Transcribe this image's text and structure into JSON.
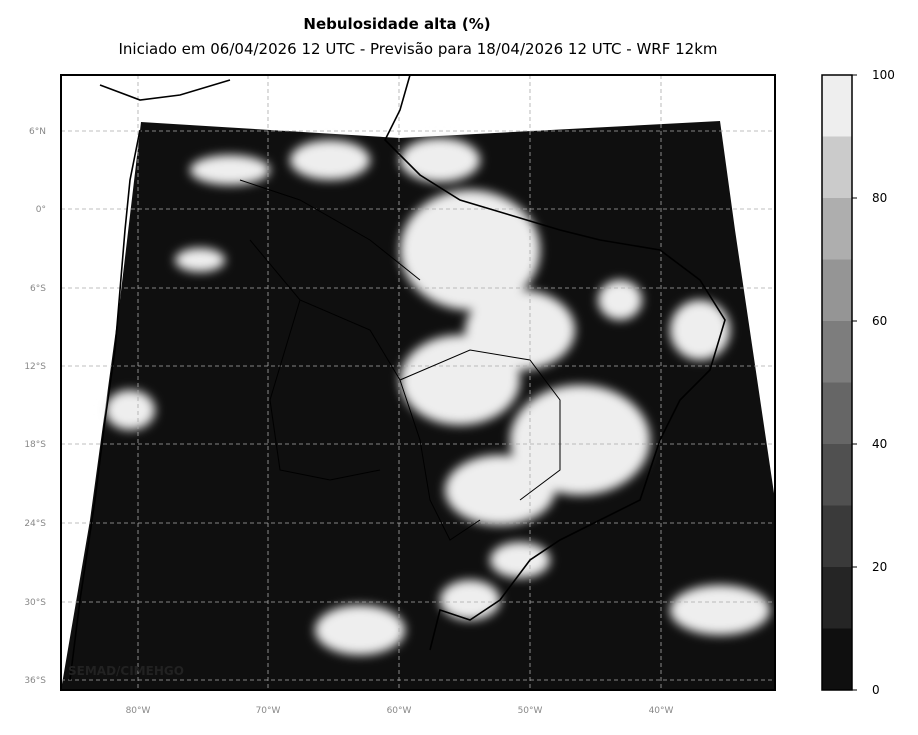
{
  "header": {
    "title": "Nebulosidade alta (%)",
    "subtitle": "Iniciado em 06/04/2026 12 UTC - Previsão para 18/04/2026 12 UTC - WRF 12km"
  },
  "map": {
    "lat_labels": [
      "6°N",
      "0°",
      "6°S",
      "12°S",
      "18°S",
      "24°S",
      "30°S",
      "36°S"
    ],
    "lon_labels": [
      "80°W",
      "70°W",
      "60°W",
      "50°W",
      "40°W"
    ],
    "watermark": "SEMAD/CIMEHGO"
  },
  "colorbar": {
    "lim": [
      0,
      100
    ],
    "ticks": [
      0,
      20,
      40,
      60,
      80,
      100
    ],
    "colors": [
      "#0f0f0f",
      "#252525",
      "#3a3a3a",
      "#505050",
      "#666666",
      "#7d7d7d",
      "#959595",
      "#aeaeae",
      "#cbcbcb",
      "#eeeeee"
    ]
  }
}
